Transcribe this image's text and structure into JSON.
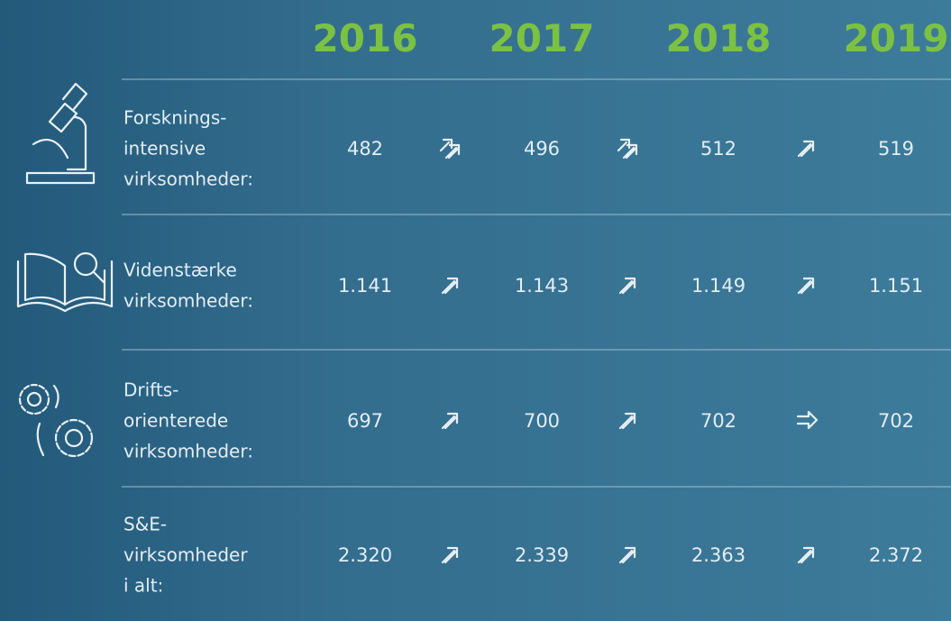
{
  "header": {
    "years": [
      "2016",
      "2017",
      "2018",
      "2019"
    ]
  },
  "table": {
    "rows": [
      {
        "label": [
          "Forsknings-",
          "intensive",
          "virksomheder:"
        ],
        "values": [
          "482",
          "496",
          "512",
          "519"
        ]
      },
      {
        "label": [
          "Videnstærke",
          "virksomheder:"
        ],
        "values": [
          "1.141",
          "1.143",
          "1.149",
          "1.151"
        ]
      },
      {
        "label": [
          "Drifts-",
          "orienterede",
          "virksomheder:"
        ],
        "values": [
          "697",
          "700",
          "702",
          "702"
        ]
      },
      {
        "label": [
          "S&E-",
          "virksomheder",
          "i alt:"
        ],
        "values": [
          "2.320",
          "2.339",
          "2.363",
          "2.372"
        ]
      }
    ]
  }
}
